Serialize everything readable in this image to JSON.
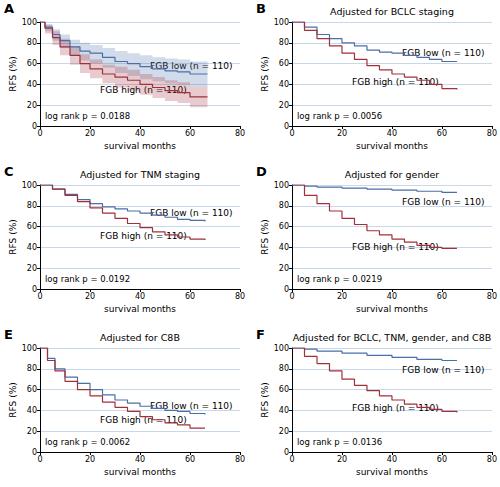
{
  "chart_data": [
    {
      "type": "line",
      "panel": "A",
      "title": null,
      "annotation": "log rank p = 0.0188",
      "x_label": "survival months",
      "y_label": "RFS (%)",
      "xlim": [
        0,
        80
      ],
      "xticks": [
        0,
        20,
        40,
        60,
        80
      ],
      "ylim": [
        0,
        100
      ],
      "yticks": [
        0,
        20,
        40,
        60,
        80,
        100
      ],
      "grid": true,
      "series": [
        {
          "name": "FGB low (n = 110)",
          "color": "#4a6ea9",
          "x": [
            0,
            2,
            5,
            8,
            12,
            16,
            20,
            25,
            30,
            35,
            40,
            45,
            50,
            55,
            60,
            67
          ],
          "values": [
            100,
            95,
            88,
            82,
            76,
            72,
            70,
            66,
            62,
            60,
            57,
            55,
            53,
            52,
            50,
            50
          ],
          "ci_lower": [
            100,
            91,
            82,
            75,
            68,
            63,
            60,
            56,
            51,
            48,
            45,
            43,
            41,
            40,
            38,
            38
          ],
          "ci_upper": [
            100,
            98,
            93,
            88,
            83,
            80,
            78,
            75,
            72,
            70,
            68,
            66,
            65,
            64,
            62,
            62
          ]
        },
        {
          "name": "FGB high (n = 110)",
          "color": "#a0303a",
          "x": [
            0,
            2,
            5,
            8,
            12,
            16,
            20,
            25,
            30,
            35,
            40,
            45,
            50,
            55,
            60,
            67
          ],
          "values": [
            100,
            94,
            85,
            76,
            68,
            60,
            55,
            50,
            47,
            44,
            40,
            37,
            34,
            32,
            28,
            28
          ],
          "ci_lower": [
            100,
            89,
            78,
            68,
            59,
            51,
            46,
            41,
            37,
            34,
            30,
            27,
            24,
            22,
            18,
            18
          ],
          "ci_upper": [
            100,
            97,
            91,
            84,
            77,
            69,
            64,
            59,
            57,
            54,
            50,
            47,
            44,
            42,
            38,
            38
          ]
        }
      ]
    },
    {
      "type": "line",
      "panel": "B",
      "title": "Adjusted for BCLC staging",
      "annotation": "log rank p = 0.0056",
      "x_label": "survival months",
      "y_label": "RFS (%)",
      "xlim": [
        0,
        80
      ],
      "xticks": [
        0,
        20,
        40,
        60,
        80
      ],
      "ylim": [
        0,
        100
      ],
      "yticks": [
        0,
        20,
        40,
        60,
        80,
        100
      ],
      "grid": true,
      "series": [
        {
          "name": "FGB low (n = 110)",
          "color": "#4a6ea9",
          "x": [
            0,
            5,
            10,
            15,
            20,
            25,
            30,
            35,
            40,
            45,
            50,
            55,
            60,
            66
          ],
          "values": [
            100,
            95,
            88,
            84,
            80,
            77,
            73,
            71,
            70,
            68,
            66,
            64,
            62,
            62
          ]
        },
        {
          "name": "FGB high (n = 110)",
          "color": "#a0303a",
          "x": [
            0,
            5,
            10,
            15,
            20,
            25,
            30,
            35,
            40,
            45,
            50,
            55,
            60,
            66
          ],
          "values": [
            100,
            92,
            84,
            77,
            70,
            64,
            58,
            54,
            50,
            47,
            44,
            40,
            36,
            35
          ]
        }
      ]
    },
    {
      "type": "line",
      "panel": "C",
      "title": "Adjusted for TNM staging",
      "annotation": "log rank p = 0.0192",
      "x_label": "survival months",
      "y_label": "RFS (%)",
      "xlim": [
        0,
        80
      ],
      "xticks": [
        0,
        20,
        40,
        60,
        80
      ],
      "ylim": [
        0,
        100
      ],
      "yticks": [
        0,
        20,
        40,
        60,
        80,
        100
      ],
      "grid": true,
      "series": [
        {
          "name": "FGB low (n = 110)",
          "color": "#4a6ea9",
          "x": [
            0,
            5,
            10,
            15,
            20,
            25,
            30,
            35,
            40,
            45,
            50,
            55,
            60,
            66
          ],
          "values": [
            100,
            96,
            91,
            86,
            82,
            79,
            77,
            75,
            73,
            71,
            69,
            67,
            66,
            65
          ]
        },
        {
          "name": "FGB high (n = 110)",
          "color": "#a0303a",
          "x": [
            0,
            5,
            10,
            15,
            20,
            25,
            30,
            35,
            40,
            45,
            50,
            55,
            60,
            66
          ],
          "values": [
            100,
            96,
            90,
            84,
            78,
            73,
            68,
            63,
            59,
            55,
            52,
            50,
            48,
            47
          ]
        }
      ]
    },
    {
      "type": "line",
      "panel": "D",
      "title": "Adjusted for gender",
      "annotation": "log rank p = 0.0219",
      "x_label": "survival months",
      "y_label": "RFS (%)",
      "xlim": [
        0,
        80
      ],
      "xticks": [
        0,
        20,
        40,
        60,
        80
      ],
      "ylim": [
        0,
        100
      ],
      "yticks": [
        0,
        20,
        40,
        60,
        80,
        100
      ],
      "grid": true,
      "series": [
        {
          "name": "FGB low (n = 110)",
          "color": "#4a6ea9",
          "x": [
            0,
            5,
            10,
            20,
            30,
            40,
            50,
            60,
            66
          ],
          "values": [
            100,
            99,
            98,
            97,
            96,
            95,
            94,
            93,
            93
          ]
        },
        {
          "name": "FGB high (n = 110)",
          "color": "#a0303a",
          "x": [
            0,
            5,
            10,
            15,
            20,
            25,
            30,
            35,
            40,
            45,
            50,
            55,
            60,
            66
          ],
          "values": [
            100,
            90,
            82,
            75,
            68,
            62,
            56,
            52,
            48,
            45,
            42,
            40,
            39,
            39
          ]
        }
      ]
    },
    {
      "type": "line",
      "panel": "E",
      "title": "Adjusted for C8B",
      "annotation": "log rank p = 0.0062",
      "x_label": "survival months",
      "y_label": "RFS (%)",
      "xlim": [
        0,
        80
      ],
      "xticks": [
        0,
        20,
        40,
        60,
        80
      ],
      "ylim": [
        0,
        100
      ],
      "yticks": [
        0,
        20,
        40,
        60,
        80,
        100
      ],
      "grid": true,
      "series": [
        {
          "name": "FGB low (n = 110)",
          "color": "#4a6ea9",
          "x": [
            0,
            3,
            6,
            10,
            15,
            20,
            25,
            30,
            35,
            40,
            45,
            50,
            55,
            60,
            66
          ],
          "values": [
            100,
            90,
            80,
            72,
            66,
            60,
            55,
            50,
            47,
            44,
            42,
            40,
            39,
            37,
            36
          ]
        },
        {
          "name": "FGB high (n = 110)",
          "color": "#a0303a",
          "x": [
            0,
            3,
            6,
            10,
            15,
            20,
            25,
            30,
            35,
            40,
            45,
            50,
            55,
            60,
            66
          ],
          "values": [
            100,
            88,
            78,
            68,
            60,
            54,
            48,
            43,
            39,
            34,
            31,
            28,
            26,
            23,
            23
          ]
        }
      ]
    },
    {
      "type": "line",
      "panel": "F",
      "title": "Adjusted for BCLC, TNM, gender, and C8B",
      "annotation": "log rank p = 0.0136",
      "x_label": "survival months",
      "y_label": "RFS (%)",
      "xlim": [
        0,
        80
      ],
      "xticks": [
        0,
        20,
        40,
        60,
        80
      ],
      "ylim": [
        0,
        100
      ],
      "yticks": [
        0,
        20,
        40,
        60,
        80,
        100
      ],
      "grid": true,
      "series": [
        {
          "name": "FGB low (n = 110)",
          "color": "#4a6ea9",
          "x": [
            0,
            5,
            10,
            20,
            30,
            40,
            50,
            60,
            66
          ],
          "values": [
            100,
            99,
            97,
            95,
            93,
            91,
            89,
            88,
            88
          ]
        },
        {
          "name": "FGB high (n = 110)",
          "color": "#a0303a",
          "x": [
            0,
            5,
            10,
            15,
            20,
            25,
            30,
            35,
            40,
            45,
            50,
            55,
            60,
            66
          ],
          "values": [
            100,
            92,
            85,
            78,
            70,
            64,
            59,
            54,
            50,
            46,
            43,
            41,
            39,
            38
          ]
        }
      ]
    }
  ]
}
